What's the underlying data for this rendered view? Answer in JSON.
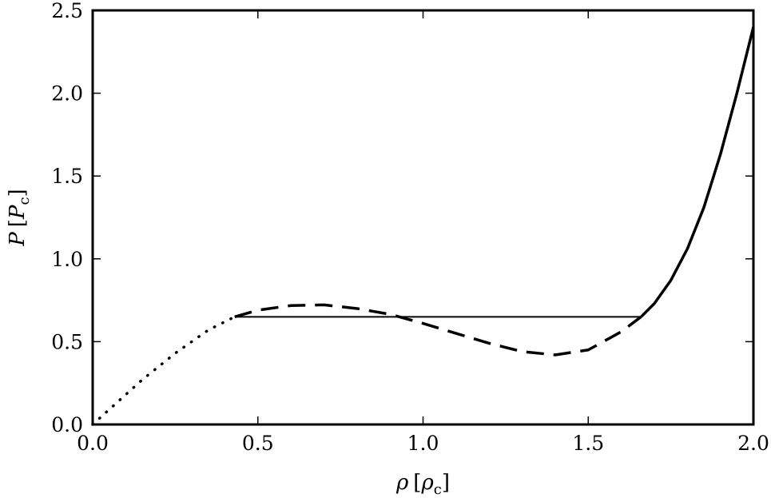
{
  "chart_data": {
    "type": "line",
    "title": "",
    "xlabel": {
      "symbol": "ρ",
      "unit_symbol": "ρ",
      "unit_sub": "c"
    },
    "ylabel": {
      "symbol": "P",
      "unit_symbol": "P",
      "unit_sub": "c"
    },
    "xlim": [
      0.0,
      2.0
    ],
    "ylim": [
      0.0,
      2.5
    ],
    "xticks": [
      0.0,
      0.5,
      1.0,
      1.5,
      2.0
    ],
    "xtick_labels": [
      "0.0",
      "0.5",
      "1.0",
      "1.5",
      "2.0"
    ],
    "yticks": [
      0.0,
      0.5,
      1.0,
      1.5,
      2.0,
      2.5
    ],
    "ytick_labels": [
      "0.0",
      "0.5",
      "1.0",
      "1.5",
      "2.0",
      "2.5"
    ],
    "grid": false,
    "legend": "none",
    "series": [
      {
        "style": "dotted",
        "color": "#000000",
        "x": [
          0.0,
          0.05,
          0.1,
          0.15,
          0.2,
          0.25,
          0.3,
          0.35,
          0.4,
          0.43
        ],
        "y": [
          0.0,
          0.09,
          0.18,
          0.27,
          0.35,
          0.43,
          0.5,
          0.57,
          0.62,
          0.65
        ]
      },
      {
        "style": "dashed",
        "color": "#000000",
        "x": [
          0.43,
          0.5,
          0.6,
          0.7,
          0.8,
          0.9,
          1.0,
          1.1,
          1.2,
          1.3,
          1.4,
          1.5,
          1.6,
          1.66
        ],
        "y": [
          0.65,
          0.69,
          0.718,
          0.722,
          0.7,
          0.665,
          0.61,
          0.55,
          0.49,
          0.44,
          0.42,
          0.45,
          0.56,
          0.65
        ]
      },
      {
        "style": "solid",
        "color": "#000000",
        "x": [
          1.66,
          1.7,
          1.75,
          1.8,
          1.85,
          1.9,
          1.95,
          2.0
        ],
        "y": [
          0.65,
          0.73,
          0.87,
          1.06,
          1.31,
          1.63,
          2.0,
          2.4
        ]
      },
      {
        "style": "solid-thin",
        "color": "#000000",
        "x": [
          0.43,
          1.66
        ],
        "y": [
          0.65,
          0.65
        ]
      }
    ]
  }
}
